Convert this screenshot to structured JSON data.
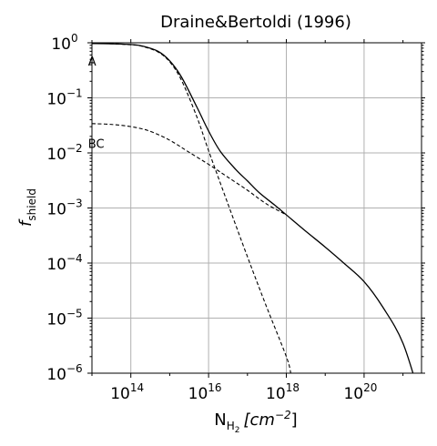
{
  "chart_data": {
    "type": "line",
    "title": "Draine&Bertoldi (1996)",
    "xlabel": {
      "main": "N",
      "sub": "H",
      "subsub": "2",
      "unit": "[cm",
      "unit_exp": "−2",
      "unit_close": "]"
    },
    "ylabel": {
      "main": "f",
      "sub": "shield"
    },
    "x_scale": "log",
    "y_scale": "log",
    "xlim": [
      10000000000000.0,
      3e+21
    ],
    "ylim": [
      1e-06,
      1.0
    ],
    "grid": true,
    "x_ticks": [
      {
        "value": 100000000000000.0,
        "base": "10",
        "exp": "14"
      },
      {
        "value": 1e+16,
        "base": "10",
        "exp": "16"
      },
      {
        "value": 1e+18,
        "base": "10",
        "exp": "18"
      },
      {
        "value": 1e+20,
        "base": "10",
        "exp": "20"
      }
    ],
    "y_ticks": [
      {
        "value": 1.0,
        "base": "10",
        "exp": "0"
      },
      {
        "value": 0.1,
        "base": "10",
        "exp": "−1"
      },
      {
        "value": 0.01,
        "base": "10",
        "exp": "−2"
      },
      {
        "value": 0.001,
        "base": "10",
        "exp": "−3"
      },
      {
        "value": 0.0001,
        "base": "10",
        "exp": "−4"
      },
      {
        "value": 1e-05,
        "base": "10",
        "exp": "−5"
      },
      {
        "value": 1e-06,
        "base": "10",
        "exp": "−6"
      }
    ],
    "annotations": [
      {
        "text": "A",
        "x": 11000000000000.0,
        "y": 0.5
      },
      {
        "text": "BC",
        "x": 11000000000000.0,
        "y": 0.016
      }
    ],
    "series": [
      {
        "style": "solid",
        "color": "#000000",
        "x": [
          10000000000000.0,
          30000000000000.0,
          100000000000000.0,
          200000000000000.0,
          500000000000000.0,
          1000000000000000.0,
          2000000000000000.0,
          5000000000000000.0,
          1e+16,
          2e+16,
          5e+16,
          1e+17,
          2e+17,
          5e+17,
          1e+18,
          3e+18,
          1e+19,
          3e+19,
          1e+20,
          3e+20,
          1e+21,
          3e+21
        ],
        "y": [
          0.97,
          0.96,
          0.93,
          0.87,
          0.7,
          0.47,
          0.24,
          0.068,
          0.025,
          0.0107,
          0.005,
          0.0031,
          0.0019,
          0.00113,
          0.00075,
          0.00039,
          0.000195,
          0.0001,
          4.6e-05,
          1.6e-05,
          3.5e-06,
          3e-07
        ]
      },
      {
        "style": "dashed",
        "color": "#000000",
        "x": [
          10000000000000.0,
          30000000000000.0,
          100000000000000.0,
          200000000000000.0,
          500000000000000.0,
          1000000000000000.0,
          2000000000000000.0,
          5000000000000000.0,
          1e+16,
          3e+16,
          1e+17,
          3e+17,
          1e+18,
          1.3e+18
        ],
        "y": [
          0.97,
          0.96,
          0.92,
          0.86,
          0.68,
          0.45,
          0.21,
          0.045,
          0.011,
          0.0013,
          0.00013,
          1.7e-05,
          2e-06,
          1e-06
        ]
      },
      {
        "style": "dashed",
        "color": "#000000",
        "x": [
          10000000000000.0,
          30000000000000.0,
          100000000000000.0,
          300000000000000.0,
          1000000000000000.0,
          3000000000000000.0,
          1e+16,
          3e+16,
          1e+17,
          3e+17,
          1e+18
        ],
        "y": [
          0.034,
          0.033,
          0.03,
          0.025,
          0.017,
          0.0105,
          0.0062,
          0.0037,
          0.0021,
          0.0012,
          0.00075
        ]
      }
    ]
  }
}
